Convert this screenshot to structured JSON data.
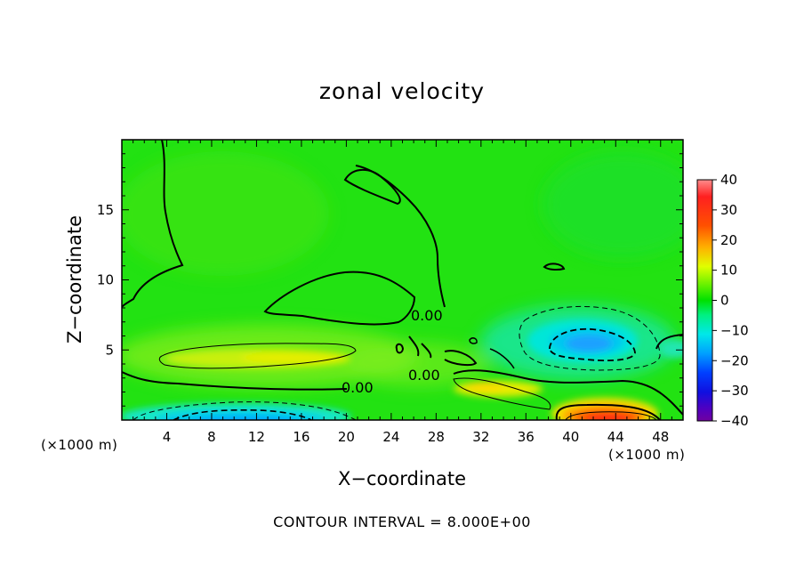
{
  "chart_data": {
    "type": "heatmap",
    "title": "zonal velocity",
    "xlabel": "X−coordinate",
    "ylabel": "Z−coordinate",
    "x_unit": "(×1000 m)",
    "z_unit": "(×1000 m)",
    "xlim": [
      0,
      50
    ],
    "ylim": [
      0,
      20
    ],
    "x_ticks": [
      "4",
      "8",
      "12",
      "16",
      "20",
      "24",
      "28",
      "32",
      "36",
      "40",
      "44",
      "48"
    ],
    "y_ticks": [
      "5",
      "10",
      "15"
    ],
    "colorbar": {
      "min": -40,
      "max": 40,
      "ticks": [
        "40",
        "30",
        "20",
        "10",
        "0",
        "−10",
        "−20",
        "−30",
        "−40"
      ]
    },
    "contour_labels": [
      "0.00",
      "0.00",
      "0.00"
    ],
    "contour_interval_text": "CONTOUR INTERVAL = 8.000E+00",
    "features": [
      {
        "x": 10,
        "z": 0.3,
        "value": -20
      },
      {
        "x": 42,
        "z": 0.4,
        "value": 34
      },
      {
        "x": 42,
        "z": 5.5,
        "value": -14
      },
      {
        "x": 13,
        "z": 4.5,
        "value": 10
      },
      {
        "x": 34,
        "z": 2.3,
        "value": 10
      }
    ]
  }
}
